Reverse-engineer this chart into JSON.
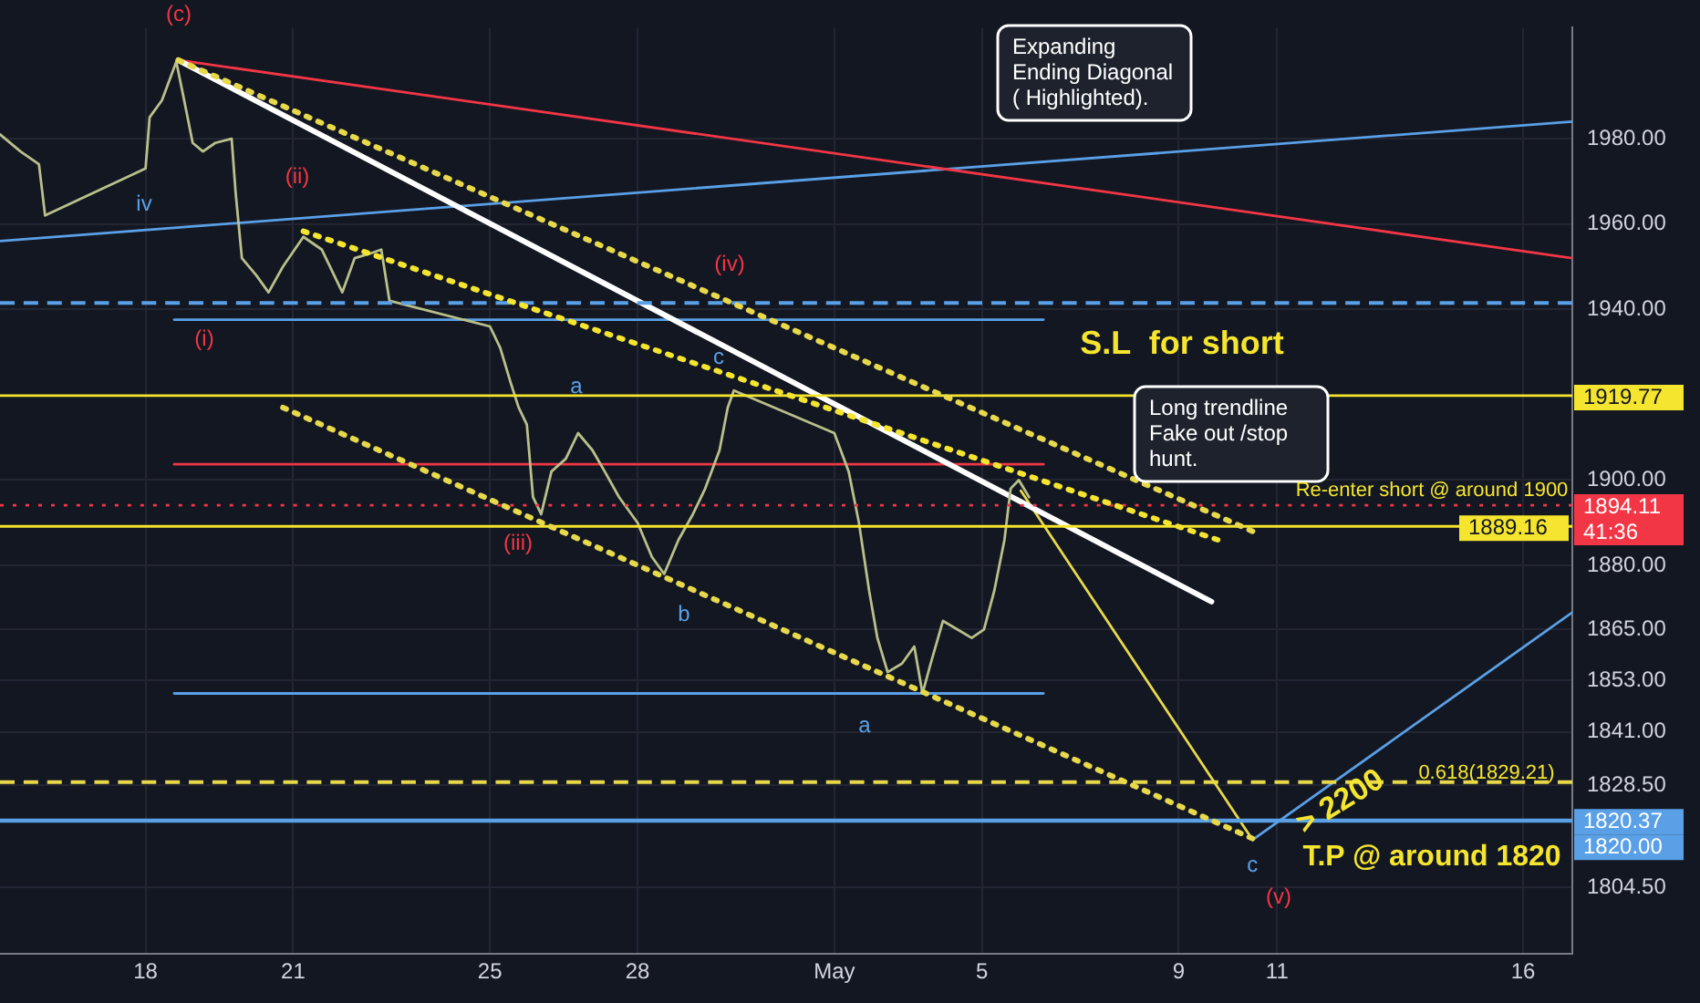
{
  "chart_data": {
    "type": "line",
    "xlim": [
      "--04-15T01:00",
      "--05-17T00:00"
    ],
    "ylim": [
      1789,
      2006
    ],
    "xticks": [
      {
        "value": "--04-18",
        "label": "18"
      },
      {
        "value": "--04-21",
        "label": "21"
      },
      {
        "value": "--04-25",
        "label": "25"
      },
      {
        "value": "--04-28",
        "label": "28"
      },
      {
        "value": "--05-02",
        "label": "May"
      },
      {
        "value": "--05-05",
        "label": "5"
      },
      {
        "value": "--05-09",
        "label": "9"
      },
      {
        "value": "--05-11",
        "label": "11"
      },
      {
        "value": "--05-16",
        "label": "16"
      }
    ],
    "yticks": [
      {
        "value": 1804.5,
        "label": "1804.50"
      },
      {
        "value": 1828.5,
        "label": "1828.50"
      },
      {
        "value": 1841,
        "label": "1841.00"
      },
      {
        "value": 1853,
        "label": "1853.00"
      },
      {
        "value": 1865,
        "label": "1865.00"
      },
      {
        "value": 1880,
        "label": "1880.00"
      },
      {
        "value": 1900,
        "label": "1900.00"
      },
      {
        "value": 1940,
        "label": "1940.00"
      },
      {
        "value": 1960,
        "label": "1960.00"
      },
      {
        "value": 1980,
        "label": "1980.00"
      }
    ],
    "grid": true,
    "legend": false,
    "marker": "none",
    "series": [
      {
        "color": "#b9c08a",
        "x": [
          "--04-15T01:00",
          "--04-15T11:00",
          "--04-15T20:00",
          "--04-15T23:00",
          "--04-18T00:00",
          "--04-18T02:00",
          "--04-18T08:00",
          "--04-18T15:00",
          "--04-18T18:00",
          "--04-18T23:00",
          "--04-19T04:00",
          "--04-19T10:00",
          "--04-19T18:00",
          "--04-19T20:00",
          "--04-19T23:00",
          "--04-20T06:00",
          "--04-20T12:00",
          "--04-20T19:00",
          "--04-21T05:00",
          "--04-21T14:00",
          "--04-22T00:00",
          "--04-22T06:00",
          "--04-22T13:00",
          "--04-22T19:00",
          "--04-22T23:00",
          "--04-25T00:00",
          "--04-25T05:00",
          "--04-25T10:00",
          "--04-25T14:00",
          "--04-25T18:00",
          "--04-25T21:00",
          "--04-26T01:00",
          "--04-26T06:00",
          "--04-26T13:00",
          "--04-26T19:00",
          "--04-27T02:00",
          "--04-27T08:00",
          "--04-27T15:00",
          "--04-28T00:00",
          "--04-28T07:00",
          "--04-28T13:00",
          "--04-28T20:00",
          "--04-29T03:00",
          "--04-29T09:00",
          "--04-29T16:00",
          "--04-29T20:00",
          "--04-29T23:00",
          "--05-02T00:00",
          "--05-02T07:00",
          "--05-02T12:00",
          "--05-02T17:00",
          "--05-02T21:00",
          "--05-03T02:00",
          "--05-03T09:00",
          "--05-03T15:00",
          "--05-03T19:00",
          "--05-03T23:00",
          "--05-04T05:00",
          "--05-04T12:00",
          "--05-04T19:00",
          "--05-05T01:00",
          "--05-05T06:00",
          "--05-05T11:00",
          "--05-05T14:00",
          "--05-05T18:00",
          "--05-05T23:00"
        ],
        "values": [
          1981,
          1977,
          1974,
          1962,
          1973,
          1985,
          1989,
          1998,
          1991,
          1979,
          1977,
          1979,
          1980,
          1967,
          1952,
          1948,
          1944,
          1950,
          1957,
          1954,
          1944,
          1952,
          1953,
          1954,
          1942,
          1936,
          1931,
          1923,
          1917,
          1913,
          1896,
          1892,
          1902,
          1905,
          1911,
          1907,
          1902,
          1896,
          1890,
          1882,
          1878,
          1886,
          1892,
          1898,
          1907,
          1917,
          1921,
          1911,
          1902,
          1890,
          1874,
          1863,
          1855,
          1857,
          1861,
          1850,
          1857,
          1867,
          1865,
          1863,
          1865,
          1874,
          1886,
          1898,
          1900,
          1896
        ]
      },
      {
        "color": "#ffffff",
        "x": [
          "--04-18T16:00",
          "--05-09T16:00"
        ],
        "values": [
          1998.4,
          1871.5
        ],
        "line_style": "solid"
      },
      {
        "color": "#e8d94a",
        "x": [
          "--04-18T16:00",
          "--05-10T12:00"
        ],
        "values": [
          1998.4,
          1888
        ],
        "line_style": "dotted"
      },
      {
        "color": "#e8d94a",
        "x": [
          "--04-20T19:00",
          "--05-10T12:00"
        ],
        "values": [
          1917,
          1816
        ],
        "line_style": "dotted"
      },
      {
        "color": "#f5e52e",
        "x": [
          "--04-21T05:00",
          "--05-09T19:00"
        ],
        "values": [
          1958.3,
          1886
        ],
        "line_style": "dotted"
      },
      {
        "color": "#e8d94a",
        "x": [
          "--05-05T19:00",
          "--05-10T12:00"
        ],
        "values": [
          1897.5,
          1815.7
        ],
        "line_style": "solid"
      },
      {
        "color": "#5aa0e6",
        "x": [
          "--05-10T12:00",
          "--05-17T00:00"
        ],
        "values": [
          1815.7,
          1869
        ],
        "line_style": "solid"
      },
      {
        "color": "#5aa0e6",
        "x": [
          "--04-18T14:00",
          "--05-06T06:00"
        ],
        "values": [
          1937.6,
          1937.6
        ],
        "line_style": "solid"
      },
      {
        "color": "#5aa0e6",
        "x": [
          "--04-18T14:00",
          "--05-06T06:00"
        ],
        "values": [
          1850,
          1850
        ],
        "line_style": "solid"
      },
      {
        "color": "#f23645",
        "x": [
          "--04-18T14:00",
          "--05-06T06:00"
        ],
        "values": [
          1903.7,
          1903.7
        ],
        "line_style": "solid"
      },
      {
        "color": "#f23645",
        "x": [
          "--04-18T16:00",
          "--05-17T00:00"
        ],
        "values": [
          1998.4,
          1952
        ],
        "line_style": "solid"
      },
      {
        "color": "#5aa0e6",
        "x": [
          "--04-15T01:00",
          "--05-17T00:00"
        ],
        "values": [
          1956,
          1984
        ],
        "line_style": "solid"
      }
    ],
    "ref_lines": [
      {
        "axis": "y",
        "value": 1941.5,
        "color": "#5aa0e6",
        "line_style": "dashed"
      },
      {
        "axis": "y",
        "value": 1919.77,
        "label": "1919.77",
        "color": "#f5e52e",
        "line_style": "solid"
      },
      {
        "axis": "y",
        "value": 1894.11,
        "label": "1894.11\n41:36",
        "color": "#f23645",
        "line_style": "dotted"
      },
      {
        "axis": "y",
        "value": 1889.16,
        "label": "1889.16",
        "color": "#f5e52e",
        "line_style": "solid"
      },
      {
        "axis": "y",
        "value": 1829.21,
        "color": "#e8d94a",
        "line_style": "dashed"
      },
      {
        "axis": "y",
        "value": 1820.37,
        "label": "1820.37",
        "color": "#5aa0e6",
        "line_style": "solid"
      },
      {
        "axis": "y",
        "value": 1820,
        "label": "1820.00",
        "color": "#5aa0e6",
        "line_style": "solid"
      }
    ],
    "annotations": [
      "(c)",
      "iv",
      "(ii)",
      "(i)",
      "(iii)",
      "a",
      "b",
      "(iv)",
      "c",
      "a",
      "(v)",
      {
        "text": "c",
        "x": "--05-10T12:00",
        "y": 1815.7
      },
      "Expanding Ending Diagonal ( Highlighted).",
      "S.L  for short",
      "Long trendline Fake out /stop hunt.",
      "Re-enter short @ around 1900",
      "> 2200",
      "T.P @ around 1820",
      "0.618(1829.21)"
    ]
  }
}
